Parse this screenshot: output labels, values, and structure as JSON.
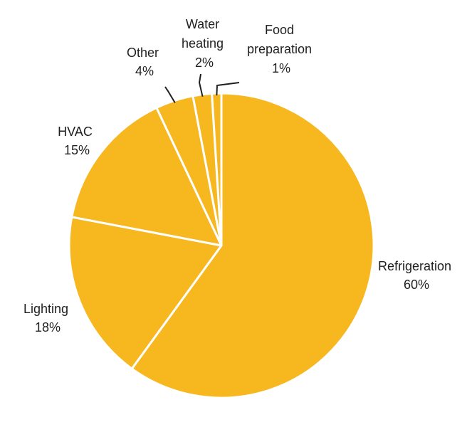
{
  "chart_data": {
    "type": "pie",
    "start": "12 o'clock",
    "direction": "clockwise",
    "colors": {
      "slice": "#F7B71F",
      "separator": "#FFFFFF",
      "leader": "#1F1F1F",
      "text": "#1F1F1F"
    },
    "slices": [
      {
        "label": "Refrigeration",
        "value": 60,
        "value_label": "60%"
      },
      {
        "label": "Lighting",
        "value": 18,
        "value_label": "18%"
      },
      {
        "label": "HVAC",
        "value": 15,
        "value_label": "15%"
      },
      {
        "label": "Other",
        "value": 4,
        "value_label": "4%"
      },
      {
        "label": "Water heating",
        "value": 2,
        "value_label": "2%"
      },
      {
        "label": "Food preparation",
        "value": 1,
        "value_label": "1%"
      }
    ]
  }
}
